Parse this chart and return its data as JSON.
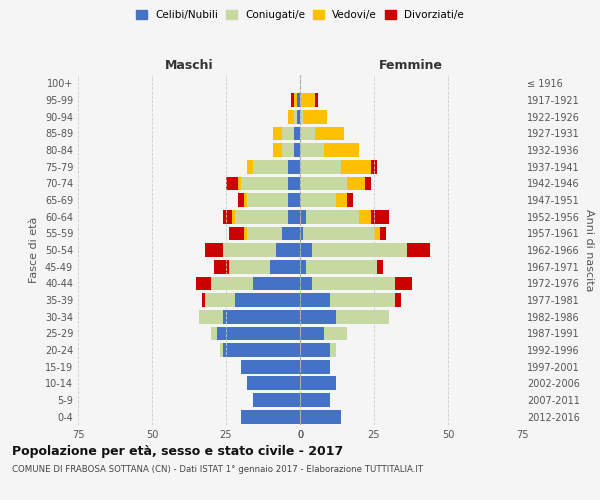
{
  "age_groups": [
    "0-4",
    "5-9",
    "10-14",
    "15-19",
    "20-24",
    "25-29",
    "30-34",
    "35-39",
    "40-44",
    "45-49",
    "50-54",
    "55-59",
    "60-64",
    "65-69",
    "70-74",
    "75-79",
    "80-84",
    "85-89",
    "90-94",
    "95-99",
    "100+"
  ],
  "birth_years": [
    "2012-2016",
    "2007-2011",
    "2002-2006",
    "1997-2001",
    "1992-1996",
    "1987-1991",
    "1982-1986",
    "1977-1981",
    "1972-1976",
    "1967-1971",
    "1962-1966",
    "1957-1961",
    "1952-1956",
    "1947-1951",
    "1942-1946",
    "1937-1941",
    "1932-1936",
    "1927-1931",
    "1922-1926",
    "1917-1921",
    "≤ 1916"
  ],
  "colors": {
    "celibi": "#4472c4",
    "coniugati": "#c5d9a0",
    "vedovi": "#ffc000",
    "divorziati": "#cc0000"
  },
  "males": {
    "celibi": [
      20,
      16,
      18,
      20,
      26,
      28,
      26,
      22,
      16,
      10,
      8,
      6,
      4,
      4,
      4,
      4,
      2,
      2,
      1,
      1,
      0
    ],
    "coniugati": [
      0,
      0,
      0,
      0,
      1,
      2,
      8,
      10,
      14,
      14,
      18,
      12,
      18,
      14,
      16,
      12,
      4,
      4,
      1,
      0,
      0
    ],
    "vedovi": [
      0,
      0,
      0,
      0,
      0,
      0,
      0,
      0,
      0,
      0,
      0,
      1,
      1,
      1,
      1,
      2,
      3,
      3,
      2,
      1,
      0
    ],
    "divorziati": [
      0,
      0,
      0,
      0,
      0,
      0,
      0,
      1,
      5,
      5,
      6,
      5,
      3,
      2,
      4,
      0,
      0,
      0,
      0,
      1,
      0
    ]
  },
  "females": {
    "nubili": [
      14,
      10,
      12,
      10,
      10,
      8,
      12,
      10,
      4,
      2,
      4,
      1,
      2,
      0,
      0,
      0,
      0,
      0,
      0,
      0,
      0
    ],
    "coniugate": [
      0,
      0,
      0,
      0,
      2,
      8,
      18,
      22,
      28,
      24,
      32,
      24,
      18,
      12,
      16,
      14,
      8,
      5,
      1,
      0,
      0
    ],
    "vedove": [
      0,
      0,
      0,
      0,
      0,
      0,
      0,
      0,
      0,
      0,
      0,
      2,
      4,
      4,
      6,
      10,
      12,
      10,
      8,
      5,
      0
    ],
    "divorziate": [
      0,
      0,
      0,
      0,
      0,
      0,
      0,
      2,
      6,
      2,
      8,
      2,
      6,
      2,
      2,
      2,
      0,
      0,
      0,
      1,
      0
    ]
  },
  "xlim": 75,
  "title": "Popolazione per età, sesso e stato civile - 2017",
  "subtitle": "COMUNE DI FRABOSA SOTTANA (CN) - Dati ISTAT 1° gennaio 2017 - Elaborazione TUTTITALIA.IT",
  "ylabel": "Fasce di età",
  "ylabel_right": "Anni di nascita",
  "xlabel_left": "Maschi",
  "xlabel_right": "Femmine",
  "legend_labels": [
    "Celibi/Nubili",
    "Coniugati/e",
    "Vedovi/e",
    "Divorziati/e"
  ],
  "bg_color": "#f5f5f5",
  "grid_color": "#cccccc"
}
